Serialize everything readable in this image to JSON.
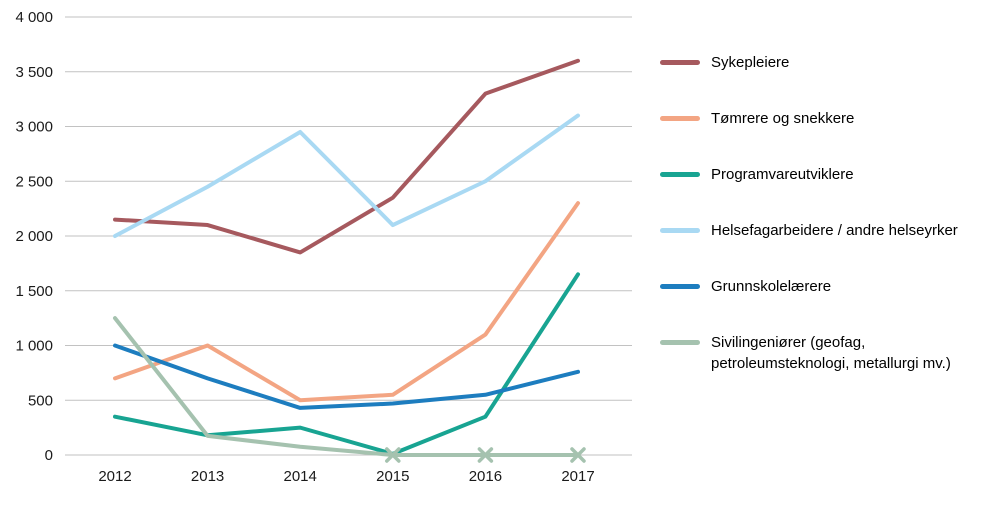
{
  "figure": {
    "background": "#ffffff"
  },
  "chart_data": {
    "type": "line",
    "title": "",
    "xlabel": "",
    "ylabel": "",
    "x_labels": [
      "2012",
      "2013",
      "2014",
      "2015",
      "2016",
      "2017"
    ],
    "ylim": [
      0,
      4000
    ],
    "ytick_values": [
      0,
      500,
      1000,
      1500,
      2000,
      2500,
      3000,
      3500,
      4000
    ],
    "ytick_labels": [
      "0",
      "500",
      "1 000",
      "1 500",
      "2 000",
      "2 500",
      "3 000",
      "3 500",
      "4 000"
    ],
    "grid": true,
    "grid_color": "#c2c2c2",
    "axis_text_color": "#1a1a1a",
    "legend_position": "right",
    "series": [
      {
        "name": "Sykepleiere",
        "color": "#a6595e",
        "values": [
          2150,
          2100,
          1850,
          2350,
          3300,
          3600
        ]
      },
      {
        "name": "Tømrere og snekkere",
        "color": "#f3a583",
        "values": [
          700,
          1000,
          500,
          550,
          1100,
          2300
        ]
      },
      {
        "name": "Programvareutviklere",
        "color": "#18a492",
        "values": [
          350,
          180,
          250,
          10,
          350,
          1650
        ]
      },
      {
        "name": "Helsefagarbeidere / andre helseyrker",
        "color": "#a9d9f3",
        "values": [
          2000,
          2450,
          2950,
          2100,
          2500,
          3100
        ]
      },
      {
        "name": "Grunnskolelærere",
        "color": "#1d7dbf",
        "values": [
          1000,
          700,
          430,
          470,
          550,
          760
        ]
      },
      {
        "name": "Sivilingeniører (geofag, petroleumsteknologi, metallurgi mv.)",
        "color": "#a5c2af",
        "values": [
          1250,
          175,
          75,
          0,
          0,
          0
        ],
        "marker": "x",
        "marker_indices": [
          3,
          4,
          5
        ]
      }
    ]
  }
}
